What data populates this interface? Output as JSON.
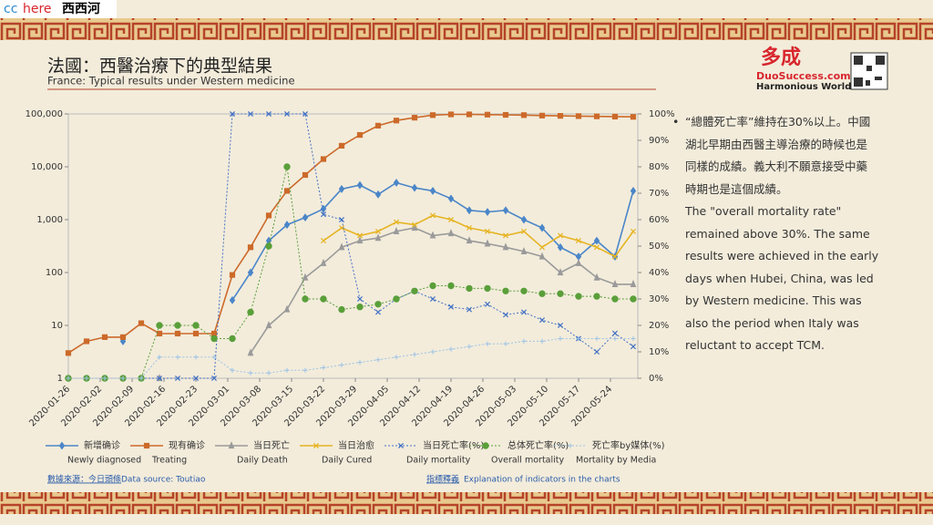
{
  "badge": {
    "cc": "cc",
    "here": "here",
    "name": "西西河"
  },
  "logo": {
    "mark": "多成",
    "site": "DuoSuccess.com",
    "motto": "Harmonious World"
  },
  "notes": {
    "zh": [
      "“總體死亡率”維持在30%以上。中國",
      "湖北早期由西醫主導治療的時候也是",
      "同樣的成績。義大利不願意接受中藥",
      "時期也是這個成績。"
    ],
    "en": [
      "The \"overall mortality rate\"",
      "remained above 30%. The same",
      "results were achieved in the early",
      "days when Hubei, China, was led",
      "by Western medicine. This was",
      "also the period when Italy was",
      "reluctant to accept TCM."
    ]
  },
  "footer": {
    "source_zh": "數據來源：今日頭條",
    "source_en": "Data source: Toutiao",
    "explain_zh": "指標釋義",
    "explain_en": "Explanation of indicators in the charts"
  },
  "chart_data": {
    "type": "line",
    "title": "法國：西醫治療下的典型結果",
    "subtitle": "France: Typical results under Western medicine",
    "x": [
      "2020-01-26",
      "2020-01-30",
      "2020-02-03",
      "2020-02-07",
      "2020-02-11",
      "2020-02-15",
      "2020-02-19",
      "2020-02-23",
      "2020-02-27",
      "2020-03-02",
      "2020-03-06",
      "2020-03-10",
      "2020-03-14",
      "2020-03-18",
      "2020-03-22",
      "2020-03-26",
      "2020-03-30",
      "2020-04-03",
      "2020-04-07",
      "2020-04-11",
      "2020-04-15",
      "2020-04-19",
      "2020-04-23",
      "2020-04-27",
      "2020-05-01",
      "2020-05-05",
      "2020-05-09",
      "2020-05-13",
      "2020-05-17",
      "2020-05-21",
      "2020-05-25",
      "2020-05-29"
    ],
    "xlim": [
      "2020-01-26",
      "2020-05-30"
    ],
    "xticks": [
      "2020-01-26",
      "2020-02-02",
      "2020-02-09",
      "2020-02-16",
      "2020-02-23",
      "2020-03-01",
      "2020-03-08",
      "2020-03-15",
      "2020-03-22",
      "2020-03-29",
      "2020-04-05",
      "2020-04-12",
      "2020-04-19",
      "2020-04-26",
      "2020-05-03",
      "2020-05-10",
      "2020-05-17",
      "2020-05-24"
    ],
    "log_y": true,
    "ylim": [
      1,
      100000
    ],
    "yticks": [
      1,
      10,
      100,
      {
        "value": 1000,
        "label": "1,000"
      },
      {
        "value": 10000,
        "label": "10,000"
      },
      {
        "value": 100000,
        "label": "100,000"
      }
    ],
    "y2lim": [
      0,
      100
    ],
    "y2ticks": [
      {
        "value": 0,
        "label": "0%"
      },
      {
        "value": 10,
        "label": "10%"
      },
      {
        "value": 20,
        "label": "20%"
      },
      {
        "value": 30,
        "label": "30%"
      },
      {
        "value": 40,
        "label": "40%"
      },
      {
        "value": 50,
        "label": "50%"
      },
      {
        "value": 60,
        "label": "60%"
      },
      {
        "value": 70,
        "label": "70%"
      },
      {
        "value": 80,
        "label": "80%"
      },
      {
        "value": 90,
        "label": "90%"
      },
      {
        "value": 100,
        "label": "100%"
      }
    ],
    "series": [
      {
        "name": "新增确诊",
        "name_en": "Newly diagnosed",
        "color": "#4a86c8",
        "marker": "diamond",
        "values": [
          null,
          null,
          null,
          5,
          null,
          null,
          null,
          null,
          null,
          30,
          100,
          400,
          800,
          1100,
          1600,
          3800,
          4500,
          3000,
          5000,
          4000,
          3500,
          2500,
          1500,
          1400,
          1500,
          1000,
          700,
          300,
          200,
          400,
          200,
          3500
        ]
      },
      {
        "name": "现有确诊",
        "name_en": "Treating",
        "color": "#cc6a2a",
        "marker": "square",
        "values": [
          3,
          5,
          6,
          6,
          11,
          7,
          7,
          7,
          7,
          90,
          300,
          1200,
          3500,
          7000,
          14000,
          25000,
          40000,
          60000,
          75000,
          85000,
          95000,
          98000,
          98000,
          97000,
          96000,
          95000,
          93000,
          92000,
          91000,
          90000,
          89000,
          88000
        ]
      },
      {
        "name": "当日死亡",
        "name_en": "Daily Death",
        "color": "#9a9a9a",
        "marker": "triangle",
        "values": [
          null,
          null,
          null,
          null,
          null,
          1,
          null,
          null,
          null,
          null,
          3,
          10,
          20,
          80,
          150,
          300,
          400,
          450,
          600,
          700,
          500,
          550,
          400,
          350,
          300,
          250,
          200,
          100,
          150,
          80,
          60,
          60
        ]
      },
      {
        "name": "当日治愈",
        "name_en": "Daily Cured",
        "color": "#e6b422",
        "marker": "cross",
        "values": [
          null,
          null,
          null,
          null,
          null,
          null,
          null,
          null,
          null,
          null,
          null,
          null,
          null,
          null,
          400,
          700,
          500,
          600,
          900,
          800,
          1200,
          1000,
          700,
          600,
          500,
          600,
          300,
          500,
          400,
          300,
          200,
          600
        ]
      },
      {
        "name": "当日死亡率(%)",
        "name_en": "Daily mortality",
        "color": "#4472c4",
        "marker": "x",
        "dash": true,
        "axis": "y2",
        "values": [
          0,
          0,
          0,
          0,
          0,
          0,
          0,
          0,
          0,
          100,
          100,
          100,
          100,
          100,
          62,
          60,
          30,
          25,
          30,
          33,
          30,
          27,
          26,
          28,
          24,
          25,
          22,
          20,
          15,
          10,
          17,
          12
        ]
      },
      {
        "name": "总体死亡率(%)",
        "name_en": "Overall mortality",
        "color": "#5a9f3a",
        "marker": "circle",
        "dash": true,
        "axis": "y2",
        "values": [
          0,
          0,
          0,
          0,
          0,
          20,
          20,
          20,
          15,
          15,
          25,
          50,
          80,
          30,
          30,
          26,
          27,
          28,
          30,
          33,
          35,
          35,
          34,
          34,
          33,
          33,
          32,
          32,
          31,
          31,
          30,
          30
        ]
      },
      {
        "name": "死亡率by媒体(%)",
        "name_en": "Mortality by Media",
        "color": "#9ec3e6",
        "marker": "plus",
        "dash": true,
        "axis": "y2",
        "values": [
          0,
          0,
          0,
          0,
          0,
          8,
          8,
          8,
          8,
          3,
          2,
          2,
          3,
          3,
          4,
          5,
          6,
          7,
          8,
          9,
          10,
          11,
          12,
          13,
          13,
          14,
          14,
          15,
          15,
          15,
          15,
          15
        ]
      }
    ]
  }
}
